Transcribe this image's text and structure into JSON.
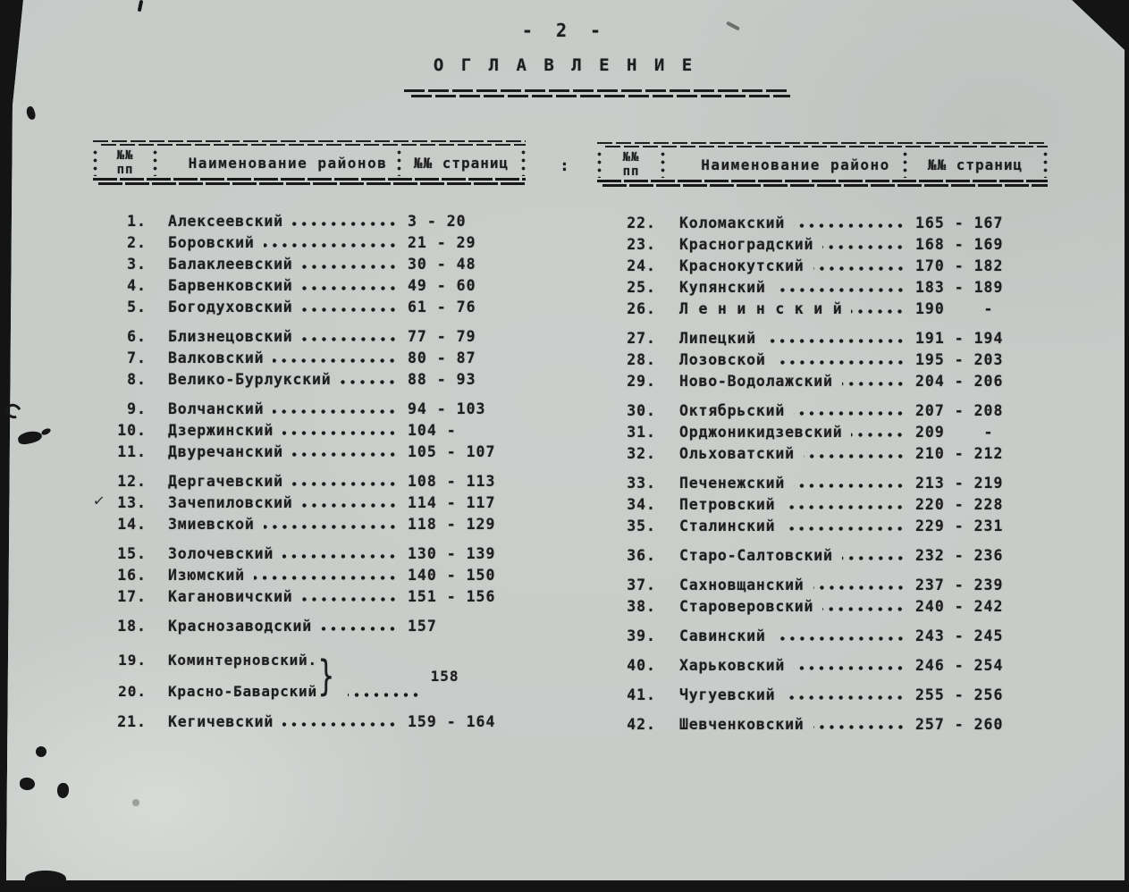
{
  "page": {
    "number_label": "- 2 -",
    "title": "О Г Л А В Л Е Н И Е"
  },
  "separator": ":",
  "brace": "}",
  "annotations": {
    "checkmark": "✓"
  },
  "colors": {
    "paper": "#c8ccc9",
    "ink": "#1e1e1e",
    "background": "#141414"
  },
  "left_table": {
    "header": {
      "num_line1": "№№",
      "num_line2": "пп",
      "name": "Наименование районов",
      "pages": "№№ страниц"
    },
    "rows": [
      {
        "num": "1.",
        "name": "Алексеевский",
        "pages": "3 - 20"
      },
      {
        "num": "2.",
        "name": "Боровский",
        "pages": "21 - 29"
      },
      {
        "num": "3.",
        "name": "Балаклеевский",
        "pages": "30 - 48"
      },
      {
        "num": "4.",
        "name": "Барвенковский",
        "pages": "49 - 60"
      },
      {
        "num": "5.",
        "name": "Богодуховский",
        "pages": "61 - 76"
      },
      {
        "num": "6.",
        "name": "Близнецовский",
        "pages": "77 - 79",
        "gap": true
      },
      {
        "num": "7.",
        "name": "Валковский",
        "pages": "80 - 87"
      },
      {
        "num": "8.",
        "name": "Велико-Бурлукский",
        "pages": "88 - 93"
      },
      {
        "num": "9.",
        "name": "Волчанский",
        "pages": "94 - 103",
        "gap": true
      },
      {
        "num": "10.",
        "name": "Дзержинский",
        "pages": "104 -"
      },
      {
        "num": "11.",
        "name": "Двуречанский",
        "pages": "105 - 107"
      },
      {
        "num": "12.",
        "name": "Дергачевский",
        "pages": "108 - 113",
        "gap": true
      },
      {
        "num": "13.",
        "name": "Зачепиловский",
        "pages": "114 - 117"
      },
      {
        "num": "14.",
        "name": "Змиевской",
        "pages": "118 - 129",
        "checked": true
      },
      {
        "num": "15.",
        "name": "Золочевский",
        "pages": "130 - 139",
        "gap": true
      },
      {
        "num": "16.",
        "name": "Изюмский",
        "pages": "140 - 150"
      },
      {
        "num": "17.",
        "name": "Кагановичский",
        "pages": "151 - 156"
      },
      {
        "num": "18.",
        "name": "Краснозаводский",
        "pages": "157",
        "gap": true
      },
      {
        "type": "group",
        "rows": [
          {
            "num": "19.",
            "name": "Коминтерновский."
          },
          {
            "num": "20.",
            "name": "Красно-Баварский"
          }
        ],
        "pages": "158"
      },
      {
        "num": "21.",
        "name": "Кегичевский",
        "pages": "159 - 164",
        "gap": true
      }
    ]
  },
  "right_table": {
    "header": {
      "num_line1": "№№",
      "num_line2": "пп",
      "name": "Наименование районо",
      "pages": "№№ страниц"
    },
    "rows": [
      {
        "num": "22.",
        "name": "Коломакский",
        "pages": "165 - 167"
      },
      {
        "num": "23.",
        "name": "Красноградский",
        "pages": "168 - 169"
      },
      {
        "num": "24.",
        "name": "Краснокутский",
        "pages": "170 - 182"
      },
      {
        "num": "25.",
        "name": "Купянский",
        "pages": "183 - 189"
      },
      {
        "num": "26.",
        "name": "Л е н и н с к и й",
        "pages": "190    -"
      },
      {
        "num": "27.",
        "name": "Липецкий",
        "pages": "191 - 194",
        "gap": true
      },
      {
        "num": "28.",
        "name": "Лозовской",
        "pages": "195 - 203"
      },
      {
        "num": "29.",
        "name": "Ново-Водолажский",
        "pages": "204 - 206"
      },
      {
        "num": "30.",
        "name": "Октябрьский",
        "pages": "207 - 208",
        "gap": true
      },
      {
        "num": "31.",
        "name": "Орджоникидзевский",
        "pages": "209    -"
      },
      {
        "num": "32.",
        "name": "Ольховатский",
        "pages": "210 - 212"
      },
      {
        "num": "33.",
        "name": "Печенежский",
        "pages": "213 - 219",
        "gap": true
      },
      {
        "num": "34.",
        "name": "Петровский",
        "pages": "220 - 228"
      },
      {
        "num": "35.",
        "name": "Сталинский",
        "pages": "229 - 231"
      },
      {
        "num": "36.",
        "name": "Старо-Салтовский",
        "pages": "232 - 236",
        "gap": true
      },
      {
        "num": "37.",
        "name": "Сахновщанский",
        "pages": "237 - 239",
        "gap": true
      },
      {
        "num": "38.",
        "name": "Староверовский",
        "pages": "240 - 242"
      },
      {
        "num": "39.",
        "name": "Савинский",
        "pages": "243 - 245",
        "gap": true
      },
      {
        "num": "40.",
        "name": "Харьковский",
        "pages": "246 - 254",
        "gap": true
      },
      {
        "num": "41.",
        "name": "Чугуевский",
        "pages": "255 - 256",
        "gap": true
      },
      {
        "num": "42.",
        "name": "Шевченковский",
        "pages": "257 - 260",
        "gap": true
      }
    ]
  }
}
